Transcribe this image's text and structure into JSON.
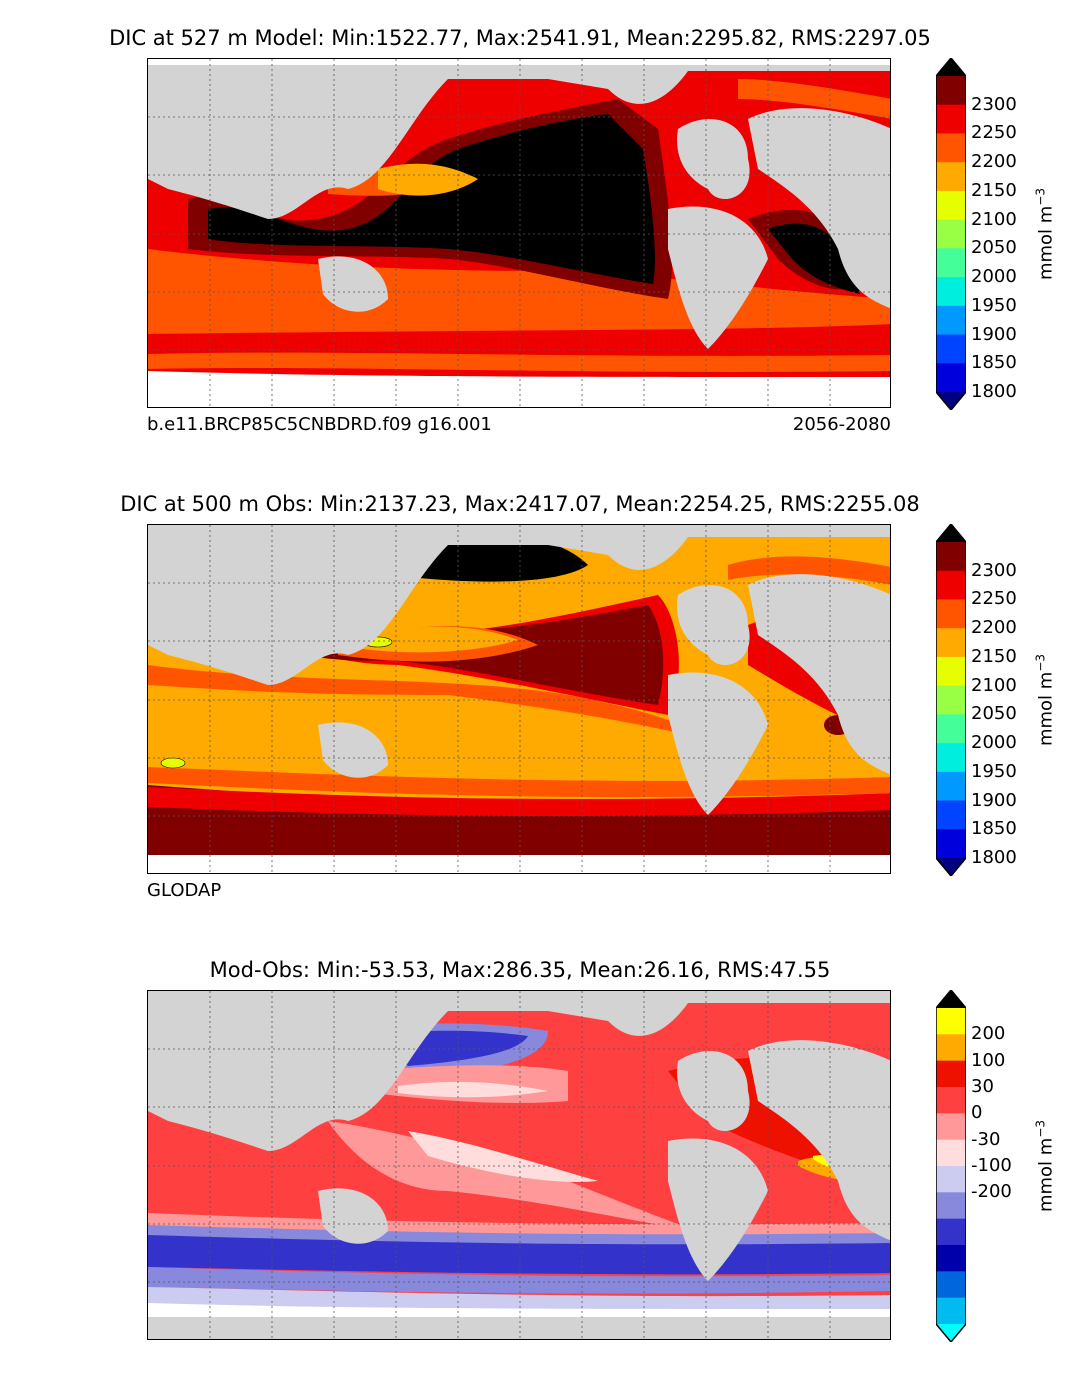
{
  "panels": [
    {
      "title": "DIC at 527 m Model: Min:1522.77, Max:2541.91, Mean:2295.82, RMS:2297.05",
      "footer_left": "b.e11.BRCP85C5CNBDRD.f09 g16.001",
      "footer_right": "2056-2080",
      "colorbar": {
        "unit": "mmol m",
        "unit_exp": "−3",
        "ticks": [
          "2300",
          "2250",
          "2200",
          "2150",
          "2100",
          "2050",
          "2000",
          "1950",
          "1900",
          "1850",
          "1800"
        ],
        "colors": [
          "#000000",
          "#800000",
          "#ee0000",
          "#ff5500",
          "#ffaa00",
          "#e6ff00",
          "#99ff44",
          "#44ff99",
          "#00eedd",
          "#0099ff",
          "#0044ff",
          "#0000dd",
          "#000080"
        ]
      }
    },
    {
      "title": "DIC at 500 m Obs: Min:2137.23, Max:2417.07, Mean:2254.25, RMS:2255.08",
      "footer_left": "GLODAP",
      "footer_right": "",
      "colorbar": {
        "unit": "mmol m",
        "unit_exp": "−3",
        "ticks": [
          "2300",
          "2250",
          "2200",
          "2150",
          "2100",
          "2050",
          "2000",
          "1950",
          "1900",
          "1850",
          "1800"
        ],
        "colors": [
          "#000000",
          "#800000",
          "#ee0000",
          "#ff5500",
          "#ffaa00",
          "#e6ff00",
          "#99ff44",
          "#44ff99",
          "#00eedd",
          "#0099ff",
          "#0044ff",
          "#0000dd",
          "#000080"
        ]
      }
    },
    {
      "title": "Mod-Obs: Min:-53.53, Max:286.35, Mean:26.16, RMS:47.55",
      "footer_left": "",
      "footer_right": "",
      "colorbar": {
        "unit": "mmol m",
        "unit_exp": "−3",
        "ticks": [
          "200",
          "100",
          "30",
          "0",
          "-30",
          "-100",
          "-200"
        ],
        "colors": [
          "#000000",
          "#ffff00",
          "#ffaa00",
          "#ee1100",
          "#ff4040",
          "#ff9999",
          "#ffdddd",
          "#ccccf0",
          "#8888dd",
          "#3333cc",
          "#0000aa",
          "#0066dd",
          "#00bbee",
          "#00ffff"
        ]
      }
    }
  ],
  "colors": {
    "land": "#d3d3d3",
    "ice": "#ffffff"
  }
}
